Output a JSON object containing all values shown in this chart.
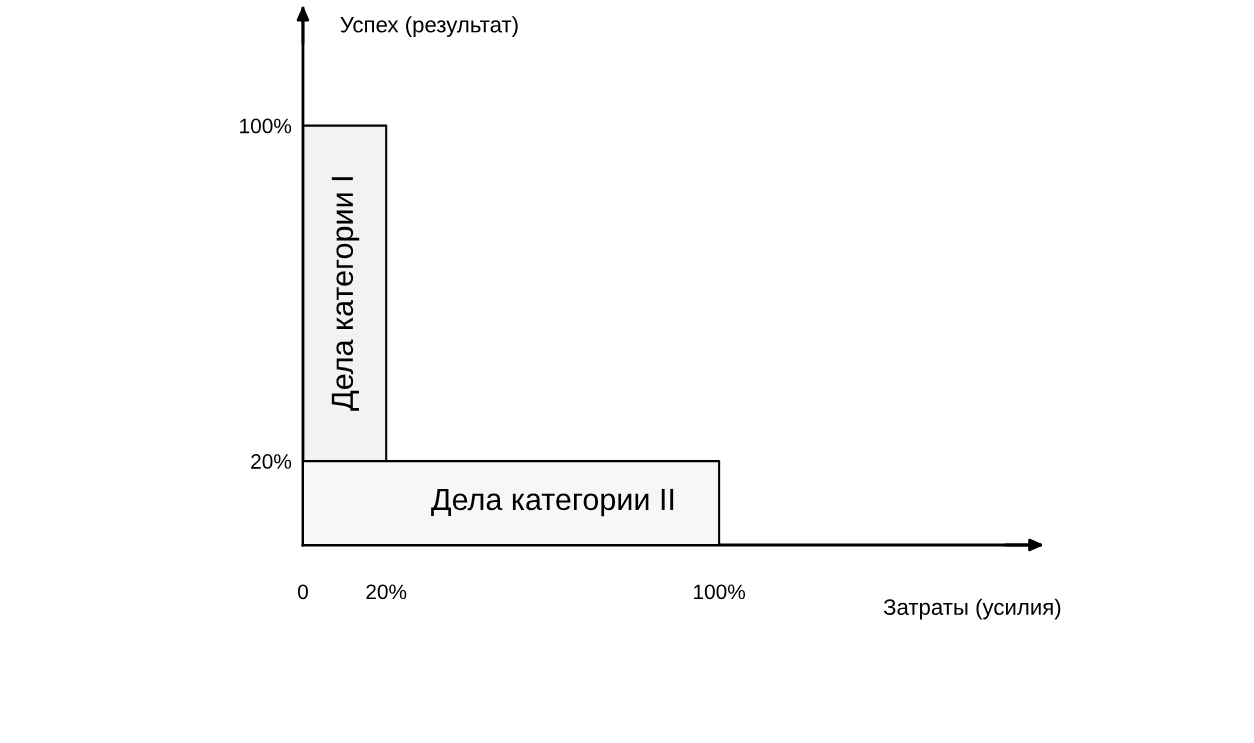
{
  "chart_data": {
    "type": "area",
    "xlabel": "Затраты (усилия)",
    "ylabel": "Успех (результат)",
    "series": [
      {
        "x": [
          0,
          20
        ],
        "values": [
          100,
          100
        ],
        "color": "#f2f2f2"
      },
      {
        "x": [
          0,
          100
        ],
        "values": [
          20,
          20
        ],
        "color": "#f7f7f7"
      }
    ],
    "annotations": [
      "Дела категории I",
      "Дела категории II"
    ],
    "xlim": [
      0,
      177
    ],
    "ylim": [
      0,
      128
    ],
    "xticks": [
      {
        "value": 0,
        "label": "0"
      },
      {
        "value": 20,
        "label": "20%"
      },
      {
        "value": 100,
        "label": "100%"
      }
    ],
    "yticks": [
      {
        "value": 20,
        "label": "20%"
      },
      {
        "value": 100,
        "label": "100%"
      }
    ],
    "grid": false,
    "legend": false
  }
}
